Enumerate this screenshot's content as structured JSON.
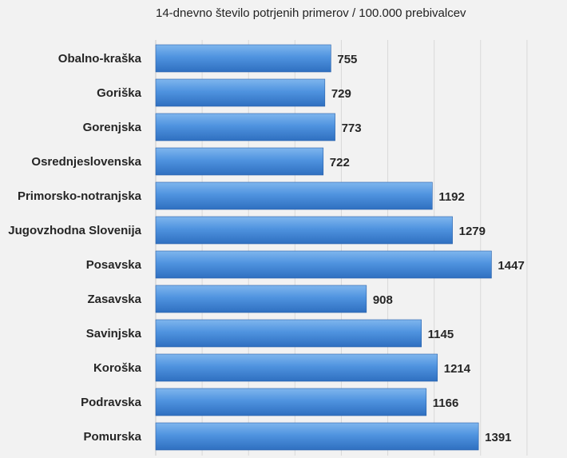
{
  "chart_data": {
    "type": "bar",
    "orientation": "horizontal",
    "title": "14-dnevno število potrjenih primerov / 100.000 prebivalcev",
    "categories": [
      "Obalno-kraška",
      "Goriška",
      "Gorenjska",
      "Osrednjeslovenska",
      "Primorsko-notranjska",
      "Jugovzhodna Slovenija",
      "Posavska",
      "Zasavska",
      "Savinjska",
      "Koroška",
      "Podravska",
      "Pomurska"
    ],
    "values": [
      755,
      729,
      773,
      722,
      1192,
      1279,
      1447,
      908,
      1145,
      1214,
      1166,
      1391
    ],
    "xlim": [
      0,
      1800
    ],
    "grid": true,
    "bar_color": "#4a8fdc",
    "background": "#f2f2f2"
  }
}
